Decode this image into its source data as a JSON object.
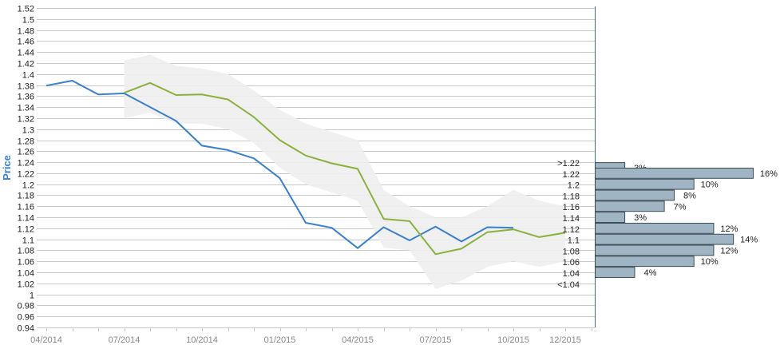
{
  "chart_data": {
    "type": "line",
    "xlabel": "",
    "ylabel": "Price",
    "ylim": [
      0.94,
      1.52
    ],
    "y_ticks": [
      "0.94",
      "0.96",
      "0.98",
      "1",
      "1.02",
      "1.04",
      "1.06",
      "1.08",
      "1.1",
      "1.12",
      "1.14",
      "1.16",
      "1.18",
      "1.2",
      "1.22",
      "1.24",
      "1.26",
      "1.28",
      "1.3",
      "1.32",
      "1.34",
      "1.36",
      "1.38",
      "1.4",
      "1.42",
      "1.44",
      "1.46",
      "1.48",
      "1.5",
      "1.52"
    ],
    "x_ticks": [
      "04/2014",
      "07/2014",
      "10/2014",
      "01/2015",
      "04/2015",
      "07/2015",
      "10/2015",
      "12/2015"
    ],
    "grid": true,
    "series": [
      {
        "name": "",
        "color": "#3a7fc8",
        "x": [
          "04/2014",
          "05/2014",
          "06/2014",
          "07/2014",
          "08/2014",
          "09/2014",
          "10/2014",
          "11/2014",
          "12/2014",
          "01/2015",
          "02/2015",
          "03/2015",
          "04/2015",
          "05/2015",
          "06/2015",
          "07/2015",
          "08/2015",
          "09/2015",
          "10/2015"
        ],
        "values": [
          1.379,
          1.388,
          1.363,
          1.365,
          1.34,
          1.315,
          1.27,
          1.262,
          1.247,
          1.211,
          1.13,
          1.121,
          1.084,
          1.122,
          1.098,
          1.123,
          1.096,
          1.122,
          1.121
        ]
      },
      {
        "name": "",
        "color": "#8ab13e",
        "x": [
          "07/2014",
          "08/2014",
          "09/2014",
          "10/2014",
          "11/2014",
          "12/2014",
          "01/2015",
          "02/2015",
          "03/2015",
          "04/2015",
          "05/2015",
          "06/2015",
          "07/2015",
          "08/2015",
          "09/2015",
          "10/2015",
          "11/2015",
          "12/2015"
        ],
        "values": [
          1.366,
          1.384,
          1.362,
          1.363,
          1.354,
          1.322,
          1.28,
          1.252,
          1.238,
          1.228,
          1.137,
          1.133,
          1.073,
          1.083,
          1.113,
          1.118,
          1.104,
          1.112
        ]
      }
    ],
    "band": {
      "color": "#eeeeee",
      "x": [
        "07/2014",
        "08/2014",
        "09/2014",
        "10/2014",
        "11/2014",
        "12/2014",
        "01/2015",
        "02/2015",
        "03/2015",
        "04/2015",
        "05/2015",
        "06/2015",
        "07/2015",
        "08/2015",
        "09/2015",
        "10/2015",
        "11/2015",
        "12/2015"
      ],
      "upper": [
        1.425,
        1.435,
        1.415,
        1.41,
        1.4,
        1.37,
        1.335,
        1.31,
        1.295,
        1.28,
        1.19,
        1.16,
        1.14,
        1.14,
        1.16,
        1.19,
        1.17,
        1.16
      ],
      "lower": [
        1.32,
        1.33,
        1.31,
        1.31,
        1.3,
        1.275,
        1.23,
        1.2,
        1.185,
        1.17,
        1.085,
        1.08,
        1.01,
        1.025,
        1.05,
        1.06,
        1.05,
        1.06
      ]
    },
    "distribution": {
      "color": "#9fb5c3",
      "bins": [
        {
          "label": ">1.22",
          "center": 1.23,
          "pct": 3,
          "pct_label": "3%"
        },
        {
          "label": "1.22",
          "center": 1.22,
          "pct": 16,
          "pct_label": "16%"
        },
        {
          "label": "1.2",
          "center": 1.2,
          "pct": 10,
          "pct_label": "10%"
        },
        {
          "label": "1.18",
          "center": 1.18,
          "pct": 8,
          "pct_label": "8%"
        },
        {
          "label": "1.16",
          "center": 1.16,
          "pct": 7,
          "pct_label": "7%"
        },
        {
          "label": "1.14",
          "center": 1.14,
          "pct": 3,
          "pct_label": "3%"
        },
        {
          "label": "1.12",
          "center": 1.12,
          "pct": 12,
          "pct_label": "12%"
        },
        {
          "label": "1.1",
          "center": 1.1,
          "pct": 14,
          "pct_label": "14%"
        },
        {
          "label": "1.08",
          "center": 1.08,
          "pct": 12,
          "pct_label": "12%"
        },
        {
          "label": "1.06",
          "center": 1.06,
          "pct": 10,
          "pct_label": "10%"
        },
        {
          "label": "1.04",
          "center": 1.04,
          "pct": 4,
          "pct_label": "4%"
        },
        {
          "label": "<1.04",
          "center": null,
          "pct": null,
          "pct_label": null
        }
      ]
    }
  }
}
